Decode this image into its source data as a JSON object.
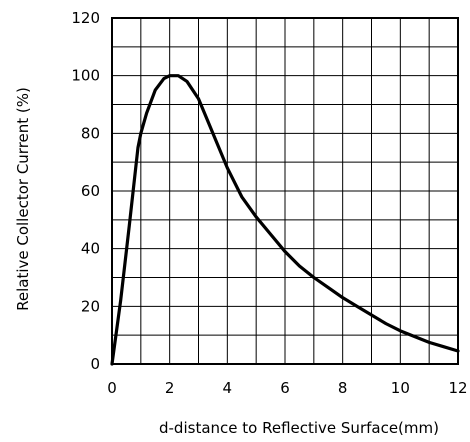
{
  "chart_data": {
    "type": "line",
    "title": "",
    "xlabel": "d-distance to Reflective Surface(mm)",
    "ylabel": "Relative Collector Current (%)",
    "xlim": [
      0,
      12
    ],
    "ylim": [
      0,
      120
    ],
    "x_ticks": [
      0,
      2,
      4,
      6,
      8,
      10,
      12
    ],
    "y_ticks": [
      0,
      20,
      40,
      60,
      80,
      100,
      120
    ],
    "x_minor_step": 1,
    "y_minor_step": 10,
    "grid": true,
    "legend": "none",
    "series": [
      {
        "color": "#000000",
        "points": [
          [
            0,
            0
          ],
          [
            0.3,
            22
          ],
          [
            0.6,
            48
          ],
          [
            0.9,
            75
          ],
          [
            1.0,
            80
          ],
          [
            1.2,
            87
          ],
          [
            1.5,
            95
          ],
          [
            1.8,
            99
          ],
          [
            2.0,
            100
          ],
          [
            2.3,
            100
          ],
          [
            2.6,
            98
          ],
          [
            3.0,
            92
          ],
          [
            3.5,
            80
          ],
          [
            4.0,
            68
          ],
          [
            4.5,
            58
          ],
          [
            5.0,
            51
          ],
          [
            5.5,
            45
          ],
          [
            6.0,
            39
          ],
          [
            6.5,
            34
          ],
          [
            7.0,
            30
          ],
          [
            7.5,
            26.5
          ],
          [
            8.0,
            23
          ],
          [
            8.5,
            20
          ],
          [
            9.0,
            17
          ],
          [
            9.5,
            14
          ],
          [
            10.0,
            11.5
          ],
          [
            10.5,
            9.5
          ],
          [
            11.0,
            7.5
          ],
          [
            11.5,
            6
          ],
          [
            12.0,
            4.5
          ]
        ]
      }
    ]
  }
}
